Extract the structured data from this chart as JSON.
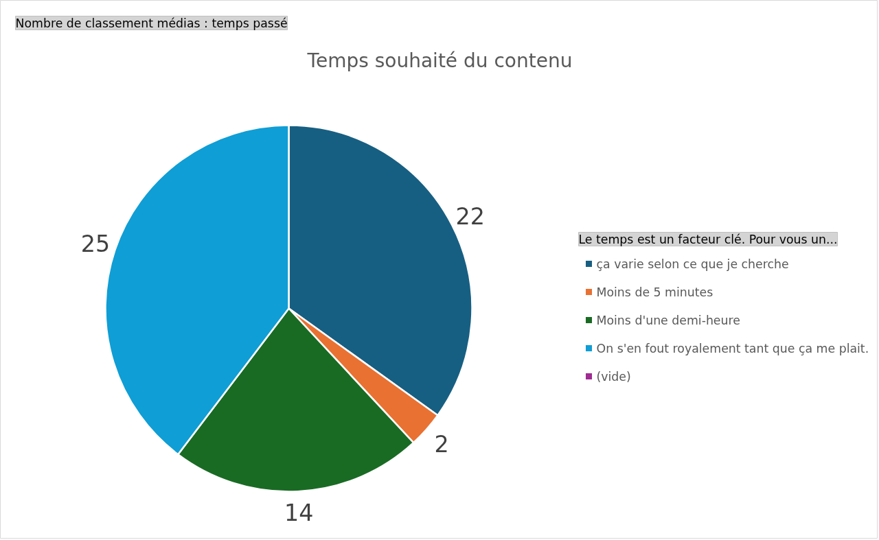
{
  "chart_data": {
    "type": "pie",
    "title": "Temps souhaité du contenu",
    "categories": [
      "ça varie selon ce que je cherche",
      "Moins de 5 minutes",
      "Moins d'une demi-heure",
      "On s'en fout royalement tant que ça me plait.",
      "(vide)"
    ],
    "values": [
      22,
      2,
      14,
      25,
      null
    ],
    "colors": [
      "#175f82",
      "#e97132",
      "#196b24",
      "#0f9ed5",
      "#a02b93"
    ],
    "legend_title": "Le temps est un facteur clé. Pour vous un...",
    "annotations": [
      "Nombre de classement médias : temps passé"
    ],
    "data_labels": true,
    "legend": "right"
  }
}
